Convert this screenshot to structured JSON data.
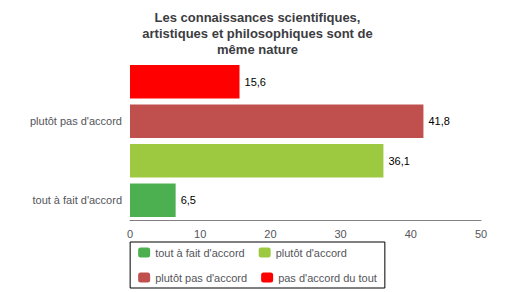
{
  "chart_data": {
    "type": "bar",
    "orientation": "horizontal",
    "title": "Les connaissances scientifiques,\nartistiques et philosophiques sont de\nmême nature",
    "categories": [
      "tout à fait d'accord",
      null,
      "plutôt pas d'accord",
      null
    ],
    "series": [
      {
        "name": "tout à fait d'accord",
        "color": "#4CAF50",
        "values": [
          6.5,
          null,
          null,
          null
        ],
        "value_labels": [
          "6,5",
          null,
          null,
          null
        ]
      },
      {
        "name": "plutôt d'accord",
        "color": "#9DC940",
        "values": [
          null,
          36.1,
          null,
          null
        ],
        "value_labels": [
          null,
          "36,1",
          null,
          null
        ]
      },
      {
        "name": "plutôt pas d'accord",
        "color": "#C0504D",
        "values": [
          null,
          null,
          41.8,
          null
        ],
        "value_labels": [
          null,
          null,
          "41,8",
          null
        ]
      },
      {
        "name": "pas d'accord du tout",
        "color": "#FF0000",
        "values": [
          null,
          null,
          null,
          15.6
        ],
        "value_labels": [
          null,
          null,
          null,
          "15,6"
        ]
      }
    ],
    "xlim": [
      0,
      50
    ],
    "xticks": [
      0,
      10,
      20,
      30,
      40,
      50
    ],
    "grid": false,
    "legend": "bottom",
    "data_labels": true
  }
}
